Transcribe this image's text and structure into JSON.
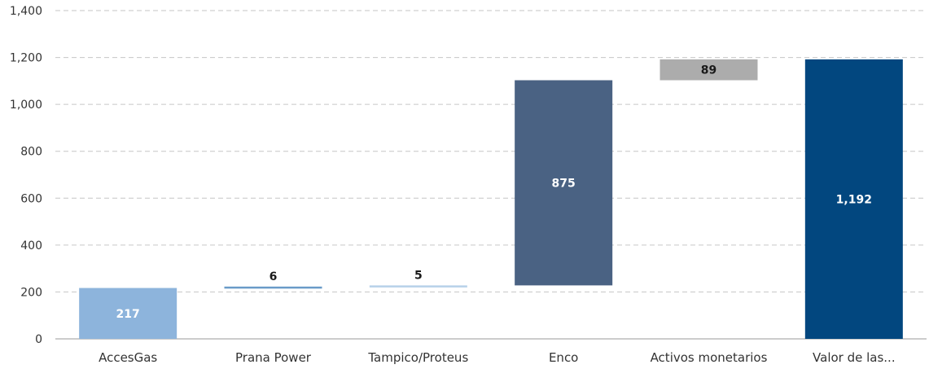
{
  "chart_data": {
    "type": "bar",
    "subtype": "waterfall",
    "title": "",
    "xlabel": "",
    "ylabel": "",
    "ylim": [
      0,
      1400
    ],
    "yticks": [
      0,
      200,
      400,
      600,
      800,
      1000,
      1200,
      1400
    ],
    "ytick_labels": [
      "0",
      "200",
      "400",
      "600",
      "800",
      "1,000",
      "1,200",
      "1,400"
    ],
    "grid": true,
    "legend": "none",
    "categories": [
      "AccesGas",
      "Prana Power",
      "Tampico/Proteus",
      "Enco",
      "Activos monetarios",
      "Valor de las..."
    ],
    "bars": [
      {
        "category": "AccesGas",
        "base": 0,
        "value": 217,
        "label": "217",
        "color": "#8db4dc",
        "label_color": "#ffffff"
      },
      {
        "category": "Prana Power",
        "base": 217,
        "value": 6,
        "label": "6",
        "color": "#6a9bc8",
        "label_color": "#1a1a1a"
      },
      {
        "category": "Tampico/Proteus",
        "base": 223,
        "value": 5,
        "label": "5",
        "color": "#b7d1e9",
        "label_color": "#1a1a1a"
      },
      {
        "category": "Enco",
        "base": 228,
        "value": 875,
        "label": "875",
        "color": "#4a6283",
        "label_color": "#ffffff"
      },
      {
        "category": "Activos monetarios",
        "base": 1103,
        "value": 89,
        "label": "89",
        "color": "#acacac",
        "label_color": "#1a1a1a"
      },
      {
        "category": "Valor de las...",
        "base": 0,
        "value": 1192,
        "label": "1,192",
        "color": "#02477f",
        "label_color": "#ffffff"
      }
    ],
    "grid_color": "#c6c6c6",
    "axis_color": "#9a9a9a"
  }
}
